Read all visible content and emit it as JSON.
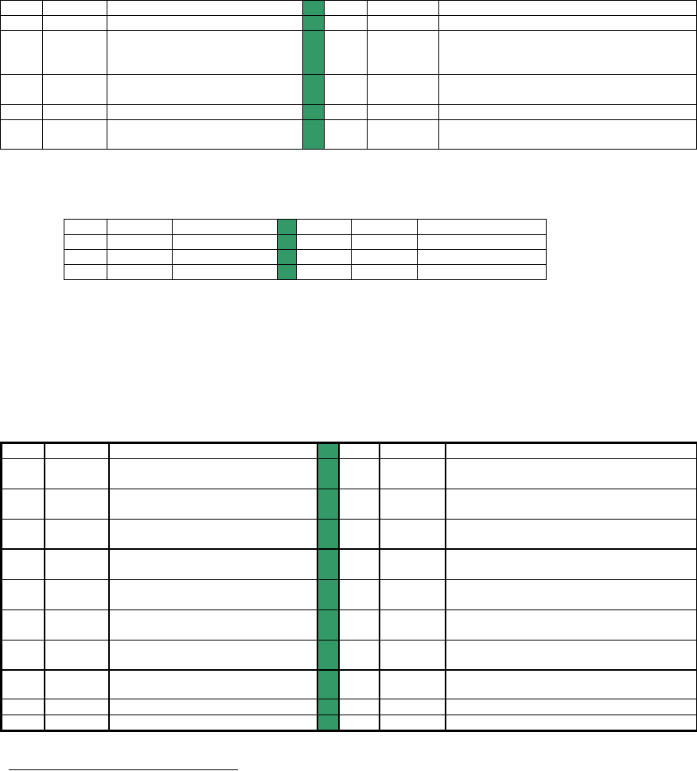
{
  "colors": {
    "highlight_column": "#339966",
    "border": "#000000",
    "background": "#ffffff"
  },
  "tables": [
    {
      "name": "table-top",
      "highlighted_column": 4,
      "rows": 6,
      "columns": 7,
      "cells_text": "empty"
    },
    {
      "name": "table-middle",
      "highlighted_column": 4,
      "rows": 4,
      "columns": 7,
      "cells_text": "empty"
    },
    {
      "name": "table-bottom",
      "highlighted_column": 4,
      "rows": 10,
      "columns": 7,
      "cells_text": "empty"
    }
  ]
}
